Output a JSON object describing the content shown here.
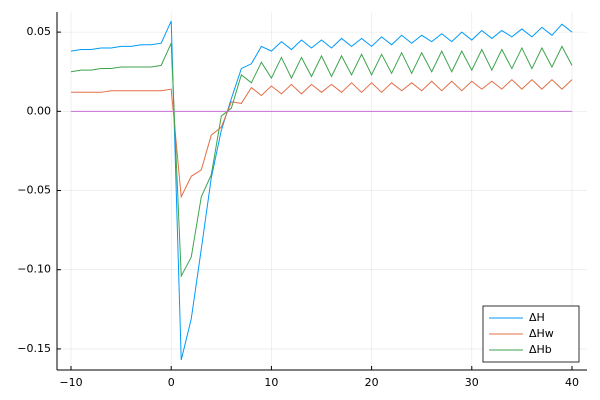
{
  "chart_data": {
    "type": "line",
    "x": [
      -10,
      -9,
      -8,
      -7,
      -6,
      -5,
      -4,
      -3,
      -2,
      -1,
      0,
      1,
      2,
      3,
      4,
      5,
      6,
      7,
      8,
      9,
      10,
      11,
      12,
      13,
      14,
      15,
      16,
      17,
      18,
      19,
      20,
      21,
      22,
      23,
      24,
      25,
      26,
      27,
      28,
      29,
      30,
      31,
      32,
      33,
      34,
      35,
      36,
      37,
      38,
      39,
      40
    ],
    "series": [
      {
        "name": "ΔH",
        "color": "#009af9",
        "values": [
          0.038,
          0.039,
          0.039,
          0.04,
          0.04,
          0.041,
          0.041,
          0.042,
          0.042,
          0.043,
          0.057,
          -0.157,
          -0.131,
          -0.087,
          -0.042,
          -0.012,
          0.008,
          0.027,
          0.03,
          0.041,
          0.038,
          0.044,
          0.039,
          0.045,
          0.04,
          0.045,
          0.04,
          0.046,
          0.041,
          0.046,
          0.041,
          0.047,
          0.042,
          0.048,
          0.043,
          0.048,
          0.044,
          0.049,
          0.044,
          0.05,
          0.045,
          0.051,
          0.046,
          0.051,
          0.047,
          0.052,
          0.047,
          0.053,
          0.048,
          0.055,
          0.05
        ]
      },
      {
        "name": "ΔHw",
        "color": "#e26f46",
        "values": [
          0.012,
          0.012,
          0.012,
          0.012,
          0.013,
          0.013,
          0.013,
          0.013,
          0.013,
          0.013,
          0.014,
          -0.054,
          -0.041,
          -0.037,
          -0.015,
          -0.01,
          0.006,
          0.005,
          0.015,
          0.01,
          0.016,
          0.011,
          0.017,
          0.011,
          0.017,
          0.012,
          0.017,
          0.012,
          0.018,
          0.012,
          0.018,
          0.012,
          0.018,
          0.013,
          0.018,
          0.013,
          0.019,
          0.013,
          0.019,
          0.013,
          0.019,
          0.014,
          0.019,
          0.014,
          0.02,
          0.014,
          0.02,
          0.014,
          0.02,
          0.014,
          0.02
        ]
      },
      {
        "name": "ΔHb",
        "color": "#3da44d",
        "values": [
          0.025,
          0.026,
          0.026,
          0.027,
          0.027,
          0.028,
          0.028,
          0.028,
          0.028,
          0.029,
          0.043,
          -0.104,
          -0.092,
          -0.054,
          -0.04,
          -0.003,
          0.002,
          0.023,
          0.018,
          0.031,
          0.021,
          0.034,
          0.021,
          0.034,
          0.022,
          0.035,
          0.022,
          0.035,
          0.023,
          0.036,
          0.023,
          0.036,
          0.024,
          0.037,
          0.024,
          0.037,
          0.025,
          0.038,
          0.025,
          0.038,
          0.026,
          0.039,
          0.026,
          0.039,
          0.027,
          0.04,
          0.027,
          0.04,
          0.028,
          0.041,
          0.029
        ]
      }
    ],
    "hlines": [
      {
        "value": 0,
        "color": "#c271d2"
      }
    ],
    "xlim": [
      -11.4,
      41.5
    ],
    "ylim": [
      -0.1633,
      0.0627
    ],
    "xticks": [
      {
        "value": -10,
        "label": "−10"
      },
      0,
      10,
      20,
      30,
      40
    ],
    "yticks": [
      0.05,
      {
        "value": 0,
        "label": "0.00"
      },
      {
        "value": -0.05,
        "label": "−0.05"
      },
      {
        "value": -0.1,
        "label": "−0.10"
      },
      {
        "value": -0.15,
        "label": "−0.15"
      }
    ],
    "grid": true,
    "legend": "bottom-right"
  }
}
